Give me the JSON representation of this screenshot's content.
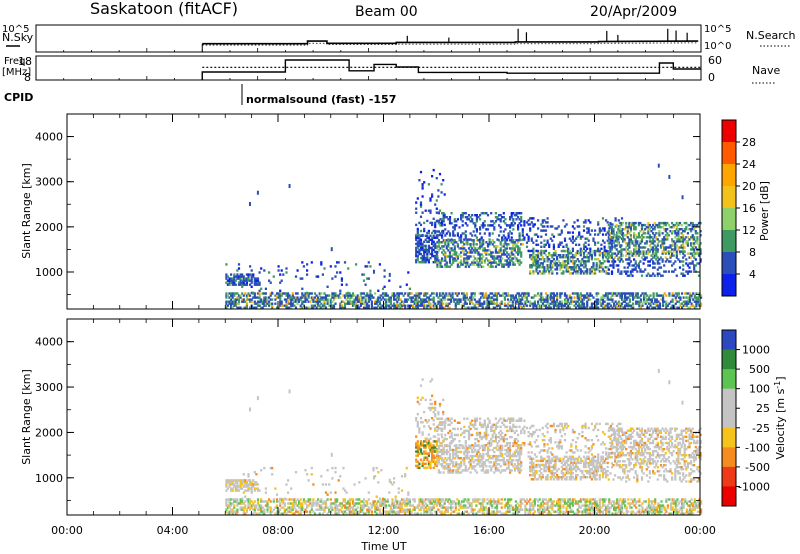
{
  "header": {
    "station": "Saskatoon (fitACF)",
    "beam": "Beam 00",
    "date": "20/Apr/2009"
  },
  "left_labels": {
    "nsky": "N.Sky",
    "freq_top": "Freq.",
    "freq_unit": "[MHz]",
    "cpid": "CPID"
  },
  "right_labels": {
    "nsearch": "N.Search",
    "nave": "Nave"
  },
  "noise_ticks": {
    "left": [
      "10^5",
      "10^0"
    ],
    "right": [
      "10^5",
      "10^0"
    ]
  },
  "freq_ticks": {
    "left": [
      "18",
      "8"
    ],
    "right": [
      "60",
      "0"
    ]
  },
  "cpid_text": "normalsound (fast) -157",
  "chart_data": [
    {
      "type": "line",
      "name": "noise",
      "ylim_log10": [
        0,
        5
      ],
      "x_hours": [
        6.0,
        9.8,
        9.8,
        10.5,
        10.5,
        13.0,
        13.0,
        17.3,
        17.3,
        20.3,
        20.3,
        23.9
      ],
      "sky_log10": [
        1.2,
        1.2,
        1.8,
        1.8,
        1.3,
        1.3,
        1.5,
        1.5,
        1.6,
        1.6,
        1.7,
        1.8
      ],
      "search_log10": [
        0.9,
        0.9,
        1.3,
        1.3,
        1.0,
        1.0,
        1.1,
        1.1,
        1.2,
        1.2,
        1.3,
        1.4
      ],
      "spikes": [
        {
          "x": 17.4,
          "y": 4.6
        },
        {
          "x": 17.7,
          "y": 3.8
        },
        {
          "x": 20.6,
          "y": 4.1
        },
        {
          "x": 21.0,
          "y": 3.2
        },
        {
          "x": 22.8,
          "y": 4.6
        },
        {
          "x": 23.1,
          "y": 4.2
        },
        {
          "x": 23.5,
          "y": 3.7
        },
        {
          "x": 13.4,
          "y": 3.0
        },
        {
          "x": 14.9,
          "y": 2.6
        }
      ]
    },
    {
      "type": "line",
      "name": "frequency",
      "ylim": [
        8,
        18
      ],
      "steps": [
        {
          "from": 6.0,
          "to": 9.0,
          "value": 11.0
        },
        {
          "from": 9.0,
          "to": 11.3,
          "value": 17.0
        },
        {
          "from": 11.3,
          "to": 12.2,
          "value": 11.6
        },
        {
          "from": 12.2,
          "to": 13.0,
          "value": 14.8
        },
        {
          "from": 13.0,
          "to": 13.8,
          "value": 13.5
        },
        {
          "from": 13.8,
          "to": 17.0,
          "value": 10.8
        },
        {
          "from": 17.0,
          "to": 22.5,
          "value": 10.4
        },
        {
          "from": 22.5,
          "to": 23.0,
          "value": 15.5
        },
        {
          "from": 23.0,
          "to": 24.0,
          "value": 12.5
        }
      ],
      "nave_ylim": [
        0,
        60
      ],
      "nave_value": 32
    },
    {
      "type": "heatmap",
      "title": "Power [dB]",
      "ylabel": "Slant Range [km]",
      "xlim": [
        0,
        24
      ],
      "ylim": [
        180,
        4500
      ],
      "yticks": [
        "1000",
        "2000",
        "3000",
        "4000"
      ],
      "colorbar": {
        "labels": [
          "28",
          "24",
          "20",
          "16",
          "12",
          "8",
          "4"
        ],
        "colors": [
          "#ee0000",
          "#ff5a00",
          "#ffa500",
          "#f2c21a",
          "#8ed06a",
          "#3f9a62",
          "#2b4fb8",
          "#0c22ea"
        ]
      }
    },
    {
      "type": "heatmap",
      "title": "Velocity [m s-1]",
      "ylabel": "Slant Range [km]",
      "xlabel": "Time UT",
      "xlim": [
        0,
        24
      ],
      "ylim": [
        180,
        4500
      ],
      "yticks": [
        "1000",
        "2000",
        "3000",
        "4000"
      ],
      "xticks": [
        "00:00",
        "04:00",
        "08:00",
        "12:00",
        "16:00",
        "20:00",
        "00:00"
      ],
      "colorbar": {
        "labels": [
          "1000",
          "500",
          "100",
          "25",
          "-25",
          "-100",
          "-500",
          "-1000"
        ],
        "colors": [
          "#2c48c0",
          "#2f8a3a",
          "#5cc450",
          "#c4c4c4",
          "#c4c4c4",
          "#f6c21c",
          "#f48c20",
          "#ee3a18",
          "#ea0000"
        ]
      }
    }
  ]
}
